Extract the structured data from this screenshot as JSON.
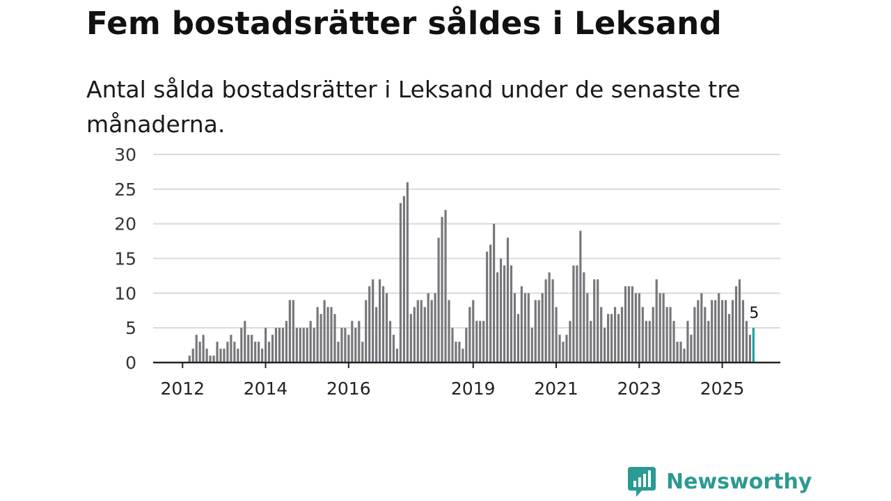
{
  "title": "Fem bostadsrätter såldes i Leksand",
  "subtitle": "Antal sålda bostadsrätter i Leksand under de senaste tre månaderna.",
  "logo": {
    "text": "Newsworthy",
    "icon": "newsworthy-bar-chart-icon"
  },
  "colors": {
    "bar": "#77767b",
    "highlight": "#1aa39a",
    "grid": "#d9d9d9",
    "axis": "#222222",
    "logo": "#2a9b92"
  },
  "chart_data": {
    "type": "bar",
    "title": "Fem bostadsrätter såldes i Leksand",
    "subtitle": "Antal sålda bostadsrätter i Leksand under de senaste tre månaderna.",
    "xlabel": "",
    "ylabel": "",
    "ylim": [
      0,
      30
    ],
    "yticks": [
      0,
      5,
      10,
      15,
      20,
      25,
      30
    ],
    "start": "2012-01",
    "xtick_labels": [
      {
        "label": "2012",
        "index": 0
      },
      {
        "label": "2014",
        "index": 24
      },
      {
        "label": "2016",
        "index": 48
      },
      {
        "label": "2019",
        "index": 84
      },
      {
        "label": "2021",
        "index": 108
      },
      {
        "label": "2023",
        "index": 132
      },
      {
        "label": "2025",
        "index": 156
      }
    ],
    "highlight_index": 163,
    "highlight_label": "5",
    "values": [
      1,
      2,
      4,
      3,
      4,
      2,
      1,
      1,
      3,
      2,
      2,
      3,
      4,
      3,
      2,
      5,
      6,
      4,
      4,
      3,
      3,
      2,
      5,
      3,
      4,
      5,
      5,
      5,
      6,
      9,
      9,
      5,
      5,
      5,
      5,
      6,
      5,
      8,
      7,
      9,
      8,
      8,
      7,
      3,
      5,
      5,
      4,
      6,
      5,
      6,
      3,
      9,
      11,
      12,
      8,
      12,
      11,
      10,
      6,
      4,
      2,
      23,
      24,
      26,
      7,
      8,
      9,
      9,
      8,
      10,
      9,
      10,
      18,
      21,
      22,
      9,
      5,
      3,
      3,
      2,
      5,
      8,
      9,
      6,
      6,
      6,
      16,
      17,
      20,
      13,
      15,
      14,
      18,
      14,
      10,
      7,
      11,
      10,
      10,
      5,
      9,
      9,
      10,
      12,
      13,
      12,
      8,
      4,
      3,
      4,
      6,
      14,
      14,
      19,
      13,
      10,
      6,
      12,
      12,
      8,
      5,
      7,
      7,
      8,
      7,
      8,
      11,
      11,
      11,
      10,
      10,
      8,
      6,
      6,
      8,
      12,
      10,
      10,
      8,
      8,
      6,
      3,
      3,
      2,
      6,
      4,
      8,
      9,
      10,
      8,
      6,
      9,
      9,
      10,
      9,
      9,
      7,
      9,
      11,
      12,
      9,
      6,
      4,
      5
    ]
  }
}
